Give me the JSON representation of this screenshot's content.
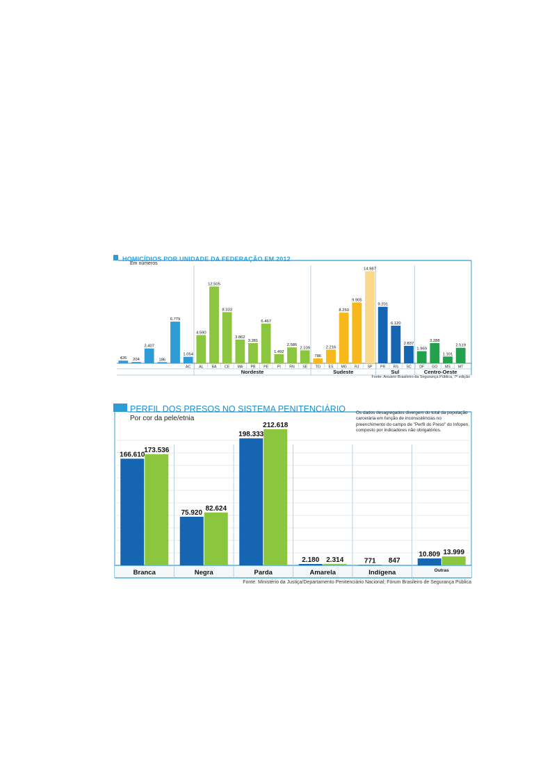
{
  "colors": {
    "accent_blue": "#2f9bd6",
    "dark_blue": "#1565b3",
    "green": "#8cc63f",
    "yellow": "#f7b81c",
    "pale_yellow": "#fcd98a",
    "dark_green": "#22a04b",
    "grid": "#dbe3ea",
    "divider": "#a9c3d8"
  },
  "chart_data": [
    {
      "type": "bar",
      "title": "HOMICÍDIOS POR UNIDADE DA FEDERAÇÃO EM 2012",
      "subtitle": "Em números",
      "source": "Fonte: Anuário Brasileiro da Segurança Pública, 7ª edição",
      "categories": [
        "",
        "",
        "",
        "",
        "",
        "AC",
        "AL",
        "BA",
        "CE",
        "MA",
        "PB",
        "PE",
        "PI",
        "RN",
        "SE",
        "TO",
        "ES",
        "MG",
        "RJ",
        "SP",
        "PR",
        "RS",
        "SC",
        "DF",
        "GO",
        "MS",
        "MT"
      ],
      "values": [
        426,
        204,
        2407,
        186,
        6779,
        1054,
        4590,
        12505,
        8333,
        3862,
        3281,
        6467,
        1492,
        2586,
        2109,
        786,
        2216,
        8250,
        9905,
        14987,
        9201,
        6120,
        2837,
        1969,
        3288,
        1101,
        2519
      ],
      "value_labels": [
        "426",
        "204",
        "2.407",
        "186",
        "6.779",
        "1.054",
        "4.590",
        "12.505",
        "8.333",
        "3.862",
        "3.281",
        "6.467",
        "1.492",
        "2.586",
        "2.109",
        "786",
        "2.216",
        "8.250",
        "9.905",
        "14.987",
        "9.201",
        "6.120",
        "2.837",
        "1.969",
        "3.288",
        "1.101",
        "2.519"
      ],
      "colors": [
        "#2f9bd6",
        "#2f9bd6",
        "#2f9bd6",
        "#2f9bd6",
        "#2f9bd6",
        "#2f9bd6",
        "#8cc63f",
        "#8cc63f",
        "#8cc63f",
        "#8cc63f",
        "#8cc63f",
        "#8cc63f",
        "#8cc63f",
        "#8cc63f",
        "#8cc63f",
        "#f7b81c",
        "#f7b81c",
        "#f7b81c",
        "#f7b81c",
        "#fcd98a",
        "#1565b3",
        "#1565b3",
        "#1565b3",
        "#22a04b",
        "#22a04b",
        "#22a04b",
        "#22a04b"
      ],
      "groups": [
        {
          "name": "",
          "count": 6
        },
        {
          "name": "Nordeste",
          "count": 9
        },
        {
          "name": "Sudeste",
          "count": 5
        },
        {
          "name": "Sul",
          "count": 3
        },
        {
          "name": "Centro-Oeste",
          "count": 4
        }
      ],
      "ylim": [
        0,
        15500
      ]
    },
    {
      "type": "bar",
      "title": "PERFIL DOS PRESOS NO SISTEMA PENITENCIÁRIO",
      "subtitle": "Por cor da pele/etnia",
      "note": "Os dados desagregados divergem do total da população carcerária em função de inconsistências no preenchimento do campo de \"Perfil do Preso\" do Infopen, composto por indicadores não obrigatórios.",
      "source": "Fonte: Ministério da Justiça/Departamento Penitenciário Nacional; Fórum Brasileiro de Segurança Pública",
      "categories": [
        "Branca",
        "Negra",
        "Parda",
        "Amarela",
        "Indígena",
        "Outras"
      ],
      "series": [
        {
          "values": [
            166610,
            75920,
            198333,
            2180,
            771,
            10809
          ],
          "labels": [
            "166.610",
            "75.920",
            "198.333",
            "2.180",
            "771",
            "10.809"
          ],
          "color": "#1565b3"
        },
        {
          "values": [
            173536,
            82624,
            212618,
            2314,
            847,
            13999
          ],
          "labels": [
            "173.536",
            "82.624",
            "212.618",
            "2.314",
            "847",
            "13.999"
          ],
          "color": "#8cc63f"
        }
      ],
      "grid": true
    }
  ]
}
